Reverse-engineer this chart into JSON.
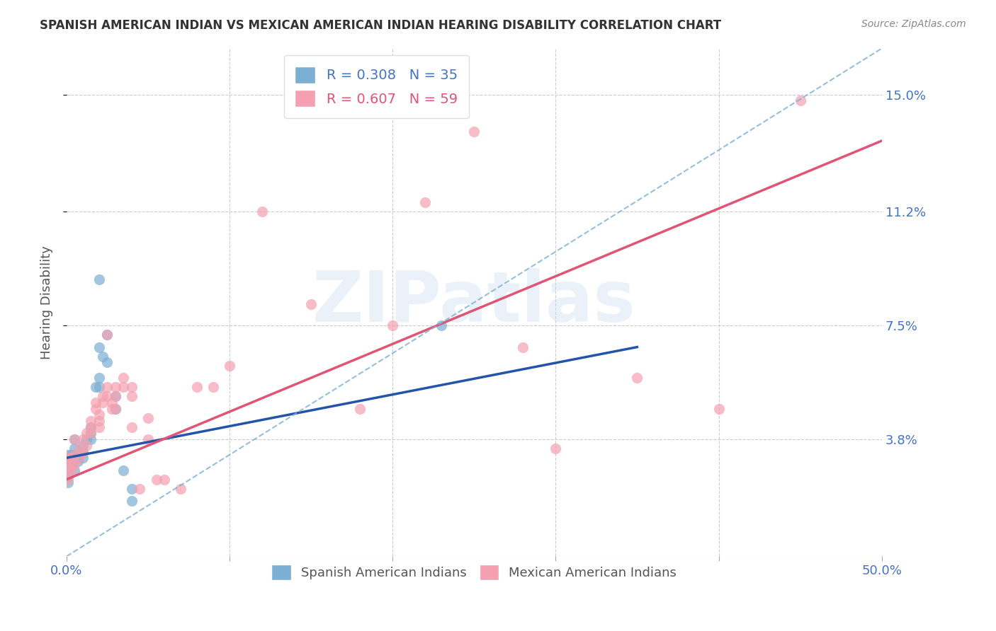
{
  "title": "SPANISH AMERICAN INDIAN VS MEXICAN AMERICAN INDIAN HEARING DISABILITY CORRELATION CHART",
  "source": "Source: ZipAtlas.com",
  "ylabel": "Hearing Disability",
  "xlim": [
    0.0,
    0.5
  ],
  "ylim": [
    0.0,
    0.165
  ],
  "ytick_labels": [
    "3.8%",
    "7.5%",
    "11.2%",
    "15.0%"
  ],
  "ytick_values": [
    0.038,
    0.075,
    0.112,
    0.15
  ],
  "background_color": "#ffffff",
  "grid_color": "#cccccc",
  "watermark": "ZIPatlas",
  "title_color": "#333333",
  "axis_label_color": "#555555",
  "tick_label_color": "#4472c4",
  "blue_color": "#7bafd4",
  "pink_color": "#f4a0b0",
  "blue_line_color": "#2255aa",
  "pink_line_color": "#e05575",
  "dashed_line_color": "#7bafd4",
  "legend_R_blue": "R = 0.308",
  "legend_N_blue": "N = 35",
  "legend_R_pink": "R = 0.607",
  "legend_N_pink": "N = 59",
  "legend_label_blue": "Spanish American Indians",
  "legend_label_pink": "Mexican American Indians",
  "blue_scatter_x": [
    0.02,
    0.02,
    0.025,
    0.005,
    0.005,
    0.005,
    0.007,
    0.007,
    0.01,
    0.01,
    0.01,
    0.012,
    0.015,
    0.015,
    0.015,
    0.018,
    0.02,
    0.02,
    0.022,
    0.025,
    0.03,
    0.03,
    0.035,
    0.04,
    0.04,
    0.001,
    0.001,
    0.001,
    0.001,
    0.001,
    0.003,
    0.003,
    0.003,
    0.005,
    0.23
  ],
  "blue_scatter_y": [
    0.09,
    0.068,
    0.072,
    0.038,
    0.035,
    0.033,
    0.032,
    0.031,
    0.032,
    0.034,
    0.036,
    0.038,
    0.038,
    0.04,
    0.042,
    0.055,
    0.055,
    0.058,
    0.065,
    0.063,
    0.048,
    0.052,
    0.028,
    0.018,
    0.022,
    0.033,
    0.03,
    0.028,
    0.026,
    0.024,
    0.033,
    0.032,
    0.03,
    0.028,
    0.075
  ],
  "pink_scatter_x": [
    0.005,
    0.005,
    0.005,
    0.008,
    0.008,
    0.01,
    0.01,
    0.012,
    0.012,
    0.015,
    0.015,
    0.015,
    0.018,
    0.018,
    0.02,
    0.02,
    0.02,
    0.022,
    0.022,
    0.025,
    0.025,
    0.025,
    0.028,
    0.028,
    0.03,
    0.03,
    0.03,
    0.035,
    0.035,
    0.04,
    0.04,
    0.04,
    0.045,
    0.05,
    0.05,
    0.055,
    0.06,
    0.07,
    0.08,
    0.09,
    0.1,
    0.12,
    0.15,
    0.18,
    0.2,
    0.25,
    0.3,
    0.35,
    0.4,
    0.001,
    0.001,
    0.001,
    0.001,
    0.003,
    0.003,
    0.003,
    0.45,
    0.22,
    0.28
  ],
  "pink_scatter_y": [
    0.038,
    0.033,
    0.03,
    0.035,
    0.032,
    0.038,
    0.034,
    0.036,
    0.04,
    0.04,
    0.042,
    0.044,
    0.048,
    0.05,
    0.042,
    0.044,
    0.046,
    0.05,
    0.052,
    0.052,
    0.055,
    0.072,
    0.048,
    0.05,
    0.048,
    0.052,
    0.055,
    0.058,
    0.055,
    0.042,
    0.052,
    0.055,
    0.022,
    0.045,
    0.038,
    0.025,
    0.025,
    0.022,
    0.055,
    0.055,
    0.062,
    0.112,
    0.082,
    0.048,
    0.075,
    0.138,
    0.035,
    0.058,
    0.048,
    0.032,
    0.03,
    0.028,
    0.025,
    0.032,
    0.03,
    0.028,
    0.148,
    0.115,
    0.068
  ],
  "blue_trend_x": [
    0.0,
    0.35
  ],
  "blue_trend_y": [
    0.032,
    0.068
  ],
  "pink_trend_x": [
    0.0,
    0.5
  ],
  "pink_trend_y": [
    0.025,
    0.135
  ],
  "dashed_trend_x": [
    0.0,
    0.5
  ],
  "dashed_trend_y": [
    0.0,
    0.165
  ]
}
